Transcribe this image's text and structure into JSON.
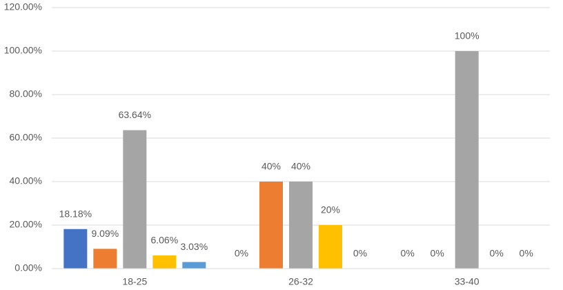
{
  "chart_data": {
    "type": "bar",
    "categories": [
      "18-25",
      "26-32",
      "33-40"
    ],
    "series": [
      {
        "color": "#4472c4",
        "values": [
          18.18,
          0,
          0
        ],
        "value_labels": [
          "18.18%",
          "0%",
          "0%"
        ]
      },
      {
        "color": "#ed7d31",
        "values": [
          9.09,
          40,
          0
        ],
        "value_labels": [
          "9.09%",
          "40%",
          "0%"
        ]
      },
      {
        "color": "#a5a5a5",
        "values": [
          63.64,
          40,
          100
        ],
        "value_labels": [
          "63.64%",
          "40%",
          "100%"
        ]
      },
      {
        "color": "#ffc000",
        "values": [
          6.06,
          20,
          0
        ],
        "value_labels": [
          "6.06%",
          "20%",
          "0%"
        ]
      },
      {
        "color": "#5b9bd5",
        "values": [
          3.03,
          0,
          0
        ],
        "value_labels": [
          "3.03%",
          "0%",
          "0%"
        ]
      }
    ],
    "ylim": [
      0,
      120
    ],
    "yticks": [
      {
        "value": 0,
        "label": "0.00%"
      },
      {
        "value": 20,
        "label": "20.00%"
      },
      {
        "value": 40,
        "label": "40.00%"
      },
      {
        "value": 60,
        "label": "60.00%"
      },
      {
        "value": 80,
        "label": "80.00%"
      },
      {
        "value": 100,
        "label": "100.00%"
      },
      {
        "value": 120,
        "label": "120.00%"
      }
    ],
    "grid": true
  }
}
